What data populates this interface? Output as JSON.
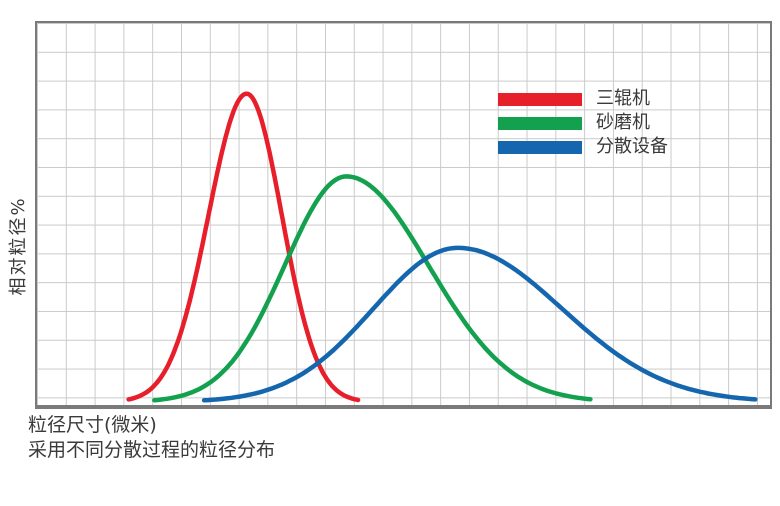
{
  "chart_data": {
    "type": "line",
    "title": "",
    "xlabel": "粒径尺寸(微米)",
    "ylabel": "相对粒径%",
    "caption": "采用不同分散过程的粒径分布",
    "grid": true,
    "legend_position": "top-right",
    "axes_note": "schematic distribution curves; no numeric tick labels on either axis",
    "x_range_relative": [
      0,
      1
    ],
    "y_range_relative": [
      0,
      1
    ],
    "series": [
      {
        "name": "三辊机",
        "color": "#e71f2b",
        "shape": "narrow bell curve",
        "peak_x": 0.286,
        "peak_height": 0.82,
        "sigma_left": 0.052,
        "sigma_right": 0.048,
        "x_start": 0.125,
        "x_end": 0.438
      },
      {
        "name": "砂磨机",
        "color": "#14a14f",
        "shape": "medium right-skewed bell curve",
        "peak_x": 0.422,
        "peak_height": 0.6,
        "sigma_left": 0.084,
        "sigma_right": 0.112,
        "x_start": 0.16,
        "x_end": 0.755
      },
      {
        "name": "分散设备",
        "color": "#1467ae",
        "shape": "broad right-skewed bell curve",
        "peak_x": 0.574,
        "peak_height": 0.41,
        "sigma_left": 0.115,
        "sigma_right": 0.142,
        "x_start": 0.228,
        "x_end": 0.98
      }
    ]
  },
  "labels": {
    "y_axis": "相对粒径%",
    "x_axis": "粒径尺寸(微米)",
    "caption": "采用不同分散过程的粒径分布"
  },
  "style": {
    "grid_color": "#cacaca",
    "border_color": "#7a7a7a",
    "text_color": "#3a3a3a",
    "background": "#ffffff"
  }
}
